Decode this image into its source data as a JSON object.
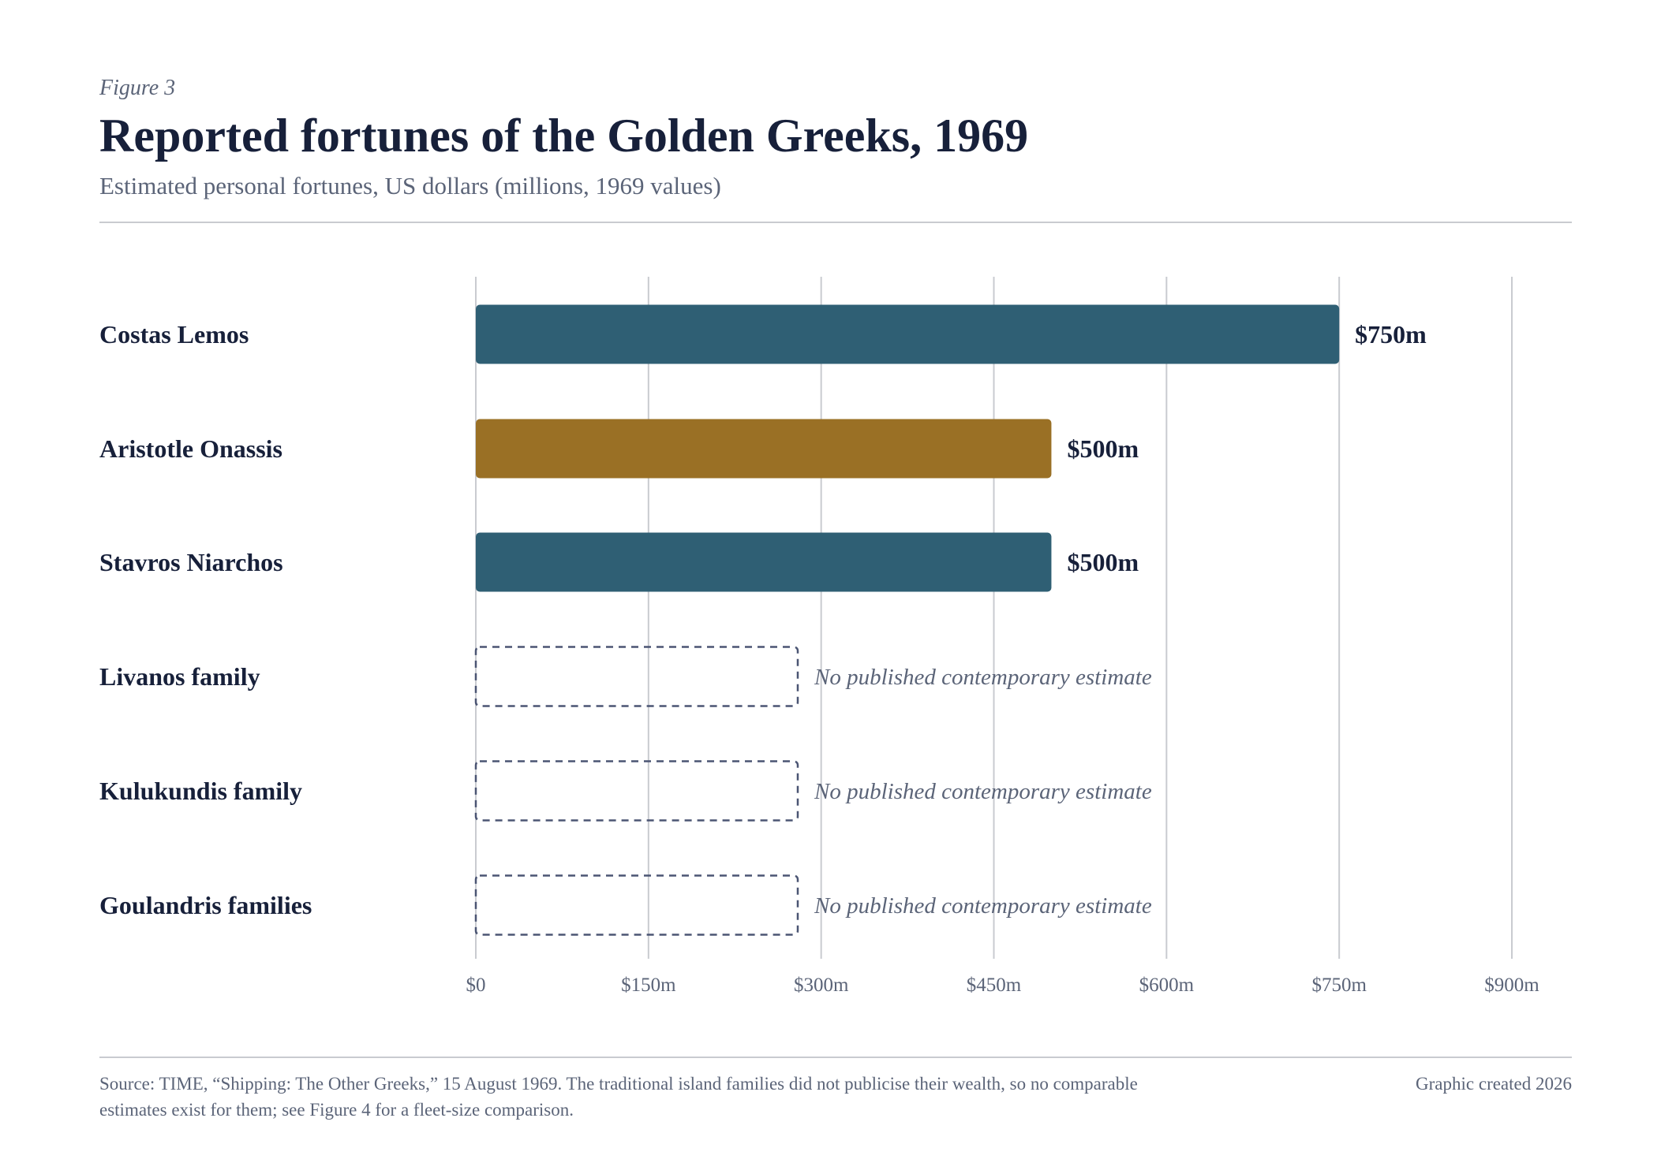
{
  "header": {
    "eyebrow": "Figure 3",
    "title": "Reported fortunes of the Golden Greeks, 1969",
    "subtitle": "Estimated personal fortunes, US dollars (millions, 1969 values)"
  },
  "footer": {
    "source": "Source: TIME, “Shipping: The Other Greeks,” 15 August 1969. The traditional island families did not publicise their wealth, so no comparable estimates exist for them; see Figure 4 for a fleet-size comparison.",
    "credit": "Graphic created 2026"
  },
  "chart_data": {
    "type": "bar",
    "orientation": "horizontal",
    "categories": [
      "Costas Lemos",
      "Aristotle Onassis",
      "Stavros Niarchos",
      "Livanos family",
      "Kulukundis family",
      "Goulandris families"
    ],
    "values": [
      750,
      500,
      500,
      null,
      null,
      null
    ],
    "value_labels": [
      "$750m",
      "$500m",
      "$500m",
      "No published contemporary estimate",
      "No published contemporary estimate",
      "No published contemporary estimate"
    ],
    "bar_colors": [
      "#2f5f74",
      "#9a7025",
      "#2f5f74",
      null,
      null,
      null
    ],
    "xlim": [
      0,
      900
    ],
    "xticks": [
      0,
      150,
      300,
      450,
      600,
      750,
      900
    ],
    "xtick_labels": [
      "$0",
      "$150m",
      "$300m",
      "$450m",
      "$600m",
      "$750m",
      "$900m"
    ],
    "xlabel": "",
    "ylabel": "",
    "grid": "vertical",
    "colors": {
      "label": "#17203a",
      "muted": "#5b6478",
      "grid": "#c9cbd0",
      "placeholder_stroke": "#4b5573"
    }
  }
}
